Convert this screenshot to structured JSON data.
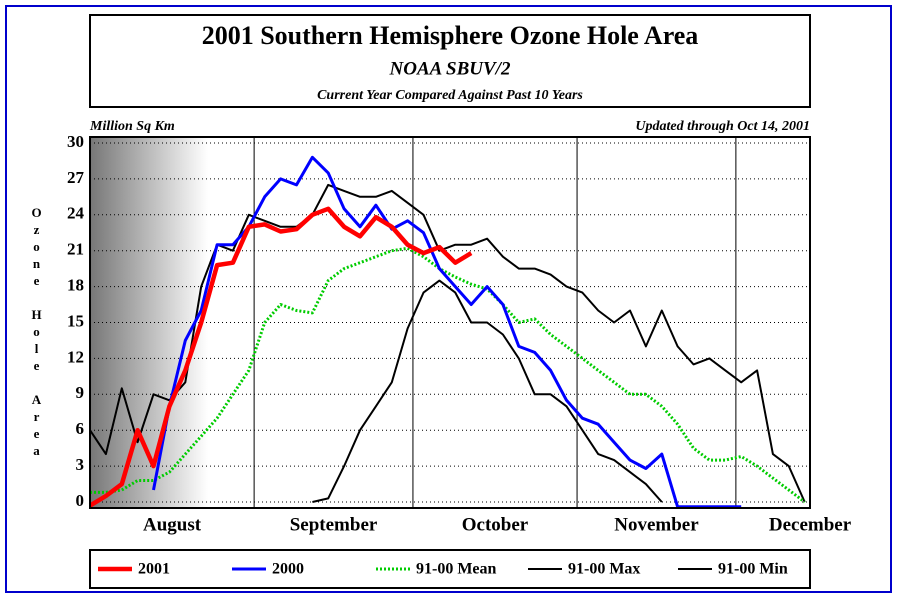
{
  "chart_data": {
    "type": "line",
    "title": "2001 Southern Hemisphere Ozone Hole Area",
    "subtitle": "NOAA SBUV/2",
    "note": "Current Year Compared Against Past 10 Years",
    "y_unit": "Million Sq Km",
    "updated": "Updated through Oct 14, 2001",
    "y_label": "Ozone Hole Area",
    "x": [
      0,
      3,
      6,
      9,
      12,
      15,
      18,
      21,
      24,
      27,
      30,
      33,
      36,
      39,
      42,
      45,
      48,
      51,
      54,
      57,
      60,
      63,
      66,
      69,
      72,
      75,
      78,
      81,
      84,
      87,
      90,
      93,
      96,
      99,
      102,
      105,
      108,
      111,
      114,
      117,
      120,
      123,
      126,
      129,
      132,
      135
    ],
    "xlim": [
      0,
      136
    ],
    "xticks": [
      {
        "value": 15.5,
        "label": "August"
      },
      {
        "value": 46,
        "label": "September"
      },
      {
        "value": 76.5,
        "label": "October"
      },
      {
        "value": 107,
        "label": "November"
      },
      {
        "value": 136,
        "label": "December"
      }
    ],
    "month_boundaries": [
      31,
      61,
      92,
      122
    ],
    "ylim": [
      -0.5,
      30.5
    ],
    "yticks": [
      0,
      3,
      6,
      9,
      12,
      15,
      18,
      21,
      24,
      27,
      30
    ],
    "grid": true,
    "series": [
      {
        "name": "2001",
        "color": "#ff0000",
        "values": [
          -0.3,
          0.5,
          1.5,
          6,
          3,
          8,
          11,
          15,
          19.8,
          20,
          23,
          23.2,
          22.6,
          22.8,
          24,
          24.5,
          23,
          22.2,
          23.8,
          23,
          21.5,
          20.8,
          21.3,
          20,
          20.8,
          null,
          null,
          null,
          null,
          null,
          null,
          null,
          null,
          null,
          null,
          null,
          null,
          null,
          null,
          null,
          null,
          null,
          null,
          null,
          null,
          null
        ]
      },
      {
        "name": "2000",
        "color": "#0000ff",
        "values": [
          null,
          null,
          null,
          null,
          1,
          8,
          13.5,
          16,
          21.5,
          21.5,
          23,
          25.5,
          27,
          26.5,
          28.8,
          27.5,
          24.5,
          23,
          24.8,
          22.8,
          23.5,
          22.5,
          19.5,
          18,
          16.5,
          18,
          16.5,
          13,
          12.5,
          11,
          8.5,
          7,
          6.5,
          5,
          3.5,
          2.8,
          4,
          -0.4,
          -0.4,
          -0.4,
          -0.4,
          -0.4,
          null,
          null,
          null,
          null
        ]
      },
      {
        "name": "91-00 Mean",
        "color": "#00cc00",
        "values": [
          0.8,
          0.8,
          1,
          1.8,
          1.8,
          2.5,
          4,
          5.5,
          7,
          9,
          11,
          15,
          16.5,
          16,
          15.8,
          18.5,
          19.5,
          20,
          20.5,
          21,
          21.2,
          20.5,
          19.5,
          18.8,
          18.2,
          17.8,
          16.5,
          15,
          15.3,
          14,
          13,
          12,
          11,
          10,
          9,
          9,
          8,
          6.5,
          4.5,
          3.5,
          3.5,
          3.8,
          3,
          2,
          1,
          0
        ]
      },
      {
        "name": "91-00 Max",
        "color": "#000000",
        "values": [
          6,
          4,
          9.5,
          5,
          9,
          8.5,
          10,
          18,
          21.5,
          21,
          24,
          23.5,
          23,
          23,
          24,
          26.5,
          26,
          25.5,
          25.5,
          26,
          25,
          24,
          21,
          21.5,
          21.5,
          22,
          20.5,
          19.5,
          19.5,
          19,
          18,
          17.5,
          16,
          15,
          16,
          13,
          16,
          13,
          11.5,
          12,
          11,
          10,
          11,
          4,
          3,
          0
        ]
      },
      {
        "name": "91-00 Min",
        "color": "#000000",
        "values": [
          null,
          null,
          null,
          null,
          null,
          null,
          null,
          null,
          null,
          null,
          null,
          null,
          null,
          null,
          0,
          0.3,
          3,
          6,
          8,
          10,
          14.5,
          17.5,
          18.5,
          17.5,
          15,
          15,
          14,
          12,
          9,
          9,
          8,
          6,
          4,
          3.5,
          2.5,
          1.5,
          0,
          null,
          null,
          null,
          null,
          null,
          null,
          null,
          null,
          null
        ]
      }
    ]
  }
}
